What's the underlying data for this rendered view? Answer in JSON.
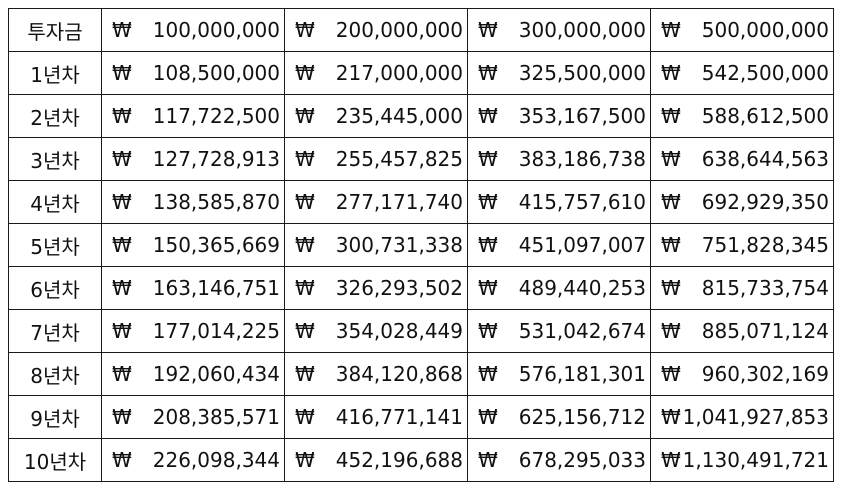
{
  "currency_symbol": "₩",
  "table": {
    "rows": [
      {
        "label": "투자금",
        "values": [
          "100,000,000",
          "200,000,000",
          "300,000,000",
          "500,000,000"
        ]
      },
      {
        "label": "1년차",
        "values": [
          "108,500,000",
          "217,000,000",
          "325,500,000",
          "542,500,000"
        ]
      },
      {
        "label": "2년차",
        "values": [
          "117,722,500",
          "235,445,000",
          "353,167,500",
          "588,612,500"
        ]
      },
      {
        "label": "3년차",
        "values": [
          "127,728,913",
          "255,457,825",
          "383,186,738",
          "638,644,563"
        ]
      },
      {
        "label": "4년차",
        "values": [
          "138,585,870",
          "277,171,740",
          "415,757,610",
          "692,929,350"
        ]
      },
      {
        "label": "5년차",
        "values": [
          "150,365,669",
          "300,731,338",
          "451,097,007",
          "751,828,345"
        ]
      },
      {
        "label": "6년차",
        "values": [
          "163,146,751",
          "326,293,502",
          "489,440,253",
          "815,733,754"
        ]
      },
      {
        "label": "7년차",
        "values": [
          "177,014,225",
          "354,028,449",
          "531,042,674",
          "885,071,124"
        ]
      },
      {
        "label": "8년차",
        "values": [
          "192,060,434",
          "384,120,868",
          "576,181,301",
          "960,302,169"
        ]
      },
      {
        "label": "9년차",
        "values": [
          "208,385,571",
          "416,771,141",
          "625,156,712",
          "1,041,927,853"
        ]
      },
      {
        "label": "10년차",
        "values": [
          "226,098,344",
          "452,196,688",
          "678,295,033",
          "1,130,491,721"
        ]
      }
    ]
  }
}
